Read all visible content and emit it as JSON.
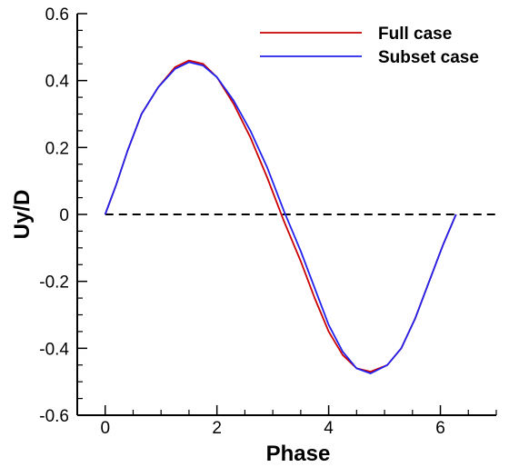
{
  "chart_data": {
    "type": "line",
    "xlabel": "Phase",
    "ylabel": "Uy/D",
    "xlim": [
      -0.5,
      7.0
    ],
    "ylim": [
      -0.6,
      0.6
    ],
    "xticks": [
      0,
      2,
      4,
      6
    ],
    "xtick_labels": [
      "0",
      "2",
      "4",
      "6"
    ],
    "yticks": [
      -0.6,
      -0.4,
      -0.2,
      0,
      0.2,
      0.4,
      0.6
    ],
    "ytick_labels": [
      "-0.6",
      "-0.4",
      "-0.2",
      "0",
      "0.2",
      "0.4",
      "0.6"
    ],
    "legend_position": "top-right",
    "grid": false,
    "reference_line": {
      "y": 0,
      "style": "dashed",
      "color": "#000000"
    },
    "series": [
      {
        "name": "Full case",
        "color": "#cc0000",
        "x": [
          0.0,
          0.2,
          0.4,
          0.65,
          0.95,
          1.25,
          1.5,
          1.75,
          2.0,
          2.3,
          2.6,
          2.9,
          3.2,
          3.5,
          3.75,
          4.0,
          4.25,
          4.5,
          4.75,
          5.05,
          5.3,
          5.55,
          5.8,
          6.05,
          6.28
        ],
        "y": [
          0.0,
          0.09,
          0.19,
          0.3,
          0.38,
          0.44,
          0.46,
          0.45,
          0.41,
          0.33,
          0.23,
          0.11,
          -0.02,
          -0.14,
          -0.25,
          -0.35,
          -0.42,
          -0.46,
          -0.47,
          -0.45,
          -0.4,
          -0.31,
          -0.2,
          -0.09,
          0.0
        ]
      },
      {
        "name": "Subset case",
        "color": "#2222ee",
        "x": [
          0.0,
          0.2,
          0.4,
          0.65,
          0.95,
          1.25,
          1.5,
          1.75,
          2.0,
          2.3,
          2.6,
          2.9,
          3.2,
          3.5,
          3.75,
          4.0,
          4.25,
          4.5,
          4.75,
          5.05,
          5.3,
          5.55,
          5.8,
          6.05,
          6.28
        ],
        "y": [
          0.0,
          0.09,
          0.19,
          0.3,
          0.38,
          0.435,
          0.455,
          0.445,
          0.41,
          0.34,
          0.25,
          0.14,
          0.01,
          -0.11,
          -0.22,
          -0.33,
          -0.41,
          -0.46,
          -0.475,
          -0.45,
          -0.4,
          -0.31,
          -0.2,
          -0.09,
          0.0
        ]
      }
    ]
  }
}
